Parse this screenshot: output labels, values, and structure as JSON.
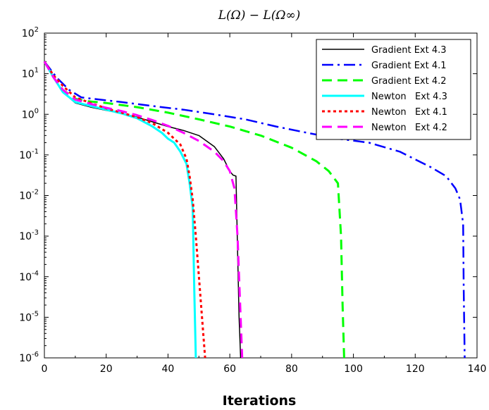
{
  "chart_data": {
    "type": "line",
    "title": "L(Ω) − L(Ω∞)",
    "xlabel": "Iterations",
    "ylabel": "",
    "xlim": [
      0,
      140
    ],
    "ylim": [
      1e-06,
      100
    ],
    "yscale": "log",
    "grid": false,
    "legend_position": "top-right",
    "x_ticks": [
      "0",
      "20",
      "40",
      "60",
      "80",
      "100",
      "120",
      "140"
    ],
    "y_ticks": [
      {
        "base": "10",
        "exp": "2",
        "value": 100
      },
      {
        "base": "10",
        "exp": "1",
        "value": 10
      },
      {
        "base": "10",
        "exp": "0",
        "value": 1
      },
      {
        "base": "10",
        "exp": "-1",
        "value": 0.1
      },
      {
        "base": "10",
        "exp": "-2",
        "value": 0.01
      },
      {
        "base": "10",
        "exp": "-3",
        "value": 0.001
      },
      {
        "base": "10",
        "exp": "-4",
        "value": 0.0001
      },
      {
        "base": "10",
        "exp": "-5",
        "value": 1e-05
      },
      {
        "base": "10",
        "exp": "-6",
        "value": 1e-06
      }
    ],
    "series": [
      {
        "name": "Gradient Ext 4.3",
        "color": "#000000",
        "style": "solid",
        "x": [
          0,
          3,
          6,
          10,
          15,
          20,
          25,
          30,
          35,
          40,
          45,
          50,
          55,
          58,
          60,
          61,
          62,
          62.5,
          63,
          63.5
        ],
        "y": [
          20,
          8,
          3.5,
          1.9,
          1.5,
          1.25,
          1.05,
          0.85,
          0.65,
          0.5,
          0.4,
          0.3,
          0.16,
          0.08,
          0.04,
          0.032,
          0.03,
          0.0005,
          1e-05,
          1e-06
        ]
      },
      {
        "name": "Gradient Ext 4.1",
        "color": "#0000ff",
        "style": "dashdot",
        "x": [
          0,
          4,
          8,
          12,
          18,
          25,
          35,
          45,
          55,
          65,
          75,
          85,
          95,
          105,
          115,
          125,
          130,
          133,
          134.5,
          135.5,
          135.7,
          136
        ],
        "y": [
          20,
          8,
          4,
          2.6,
          2.3,
          2.0,
          1.6,
          1.3,
          1.0,
          0.75,
          0.5,
          0.35,
          0.25,
          0.2,
          0.12,
          0.05,
          0.03,
          0.015,
          0.008,
          0.002,
          5e-05,
          1e-06
        ]
      },
      {
        "name": "Gradient Ext 4.2",
        "color": "#00ff00",
        "style": "dash",
        "x": [
          0,
          3,
          6,
          10,
          14,
          20,
          30,
          40,
          50,
          60,
          70,
          80,
          88,
          92,
          95,
          96,
          96.5,
          97
        ],
        "y": [
          20,
          8,
          4,
          2.4,
          2.1,
          1.9,
          1.5,
          1.1,
          0.75,
          0.5,
          0.3,
          0.15,
          0.07,
          0.04,
          0.02,
          0.001,
          2e-05,
          1e-06
        ]
      },
      {
        "name": "Newton   Ext 4.3",
        "color": "#00ffff",
        "style": "solid",
        "x": [
          0,
          3,
          6,
          10,
          15,
          20,
          25,
          30,
          35,
          38,
          40,
          42,
          44,
          46,
          47,
          48,
          48.5,
          49
        ],
        "y": [
          20,
          8,
          3.5,
          2.0,
          1.6,
          1.3,
          1.05,
          0.8,
          0.5,
          0.35,
          0.25,
          0.2,
          0.12,
          0.06,
          0.02,
          0.005,
          5e-05,
          1e-06
        ]
      },
      {
        "name": "Newton   Ext 4.1",
        "color": "#ff0000",
        "style": "dot",
        "x": [
          0,
          3,
          6,
          10,
          15,
          20,
          25,
          30,
          35,
          40,
          44,
          46,
          47,
          48,
          49,
          50,
          51,
          52
        ],
        "y": [
          20,
          9,
          5,
          2.6,
          1.9,
          1.4,
          1.1,
          0.85,
          0.6,
          0.35,
          0.18,
          0.08,
          0.03,
          0.008,
          0.001,
          0.0001,
          1e-05,
          1e-06
        ]
      },
      {
        "name": "Newton   Ext 4.2",
        "color": "#ff00ff",
        "style": "dash",
        "x": [
          0,
          3,
          6,
          10,
          15,
          20,
          25,
          30,
          35,
          40,
          45,
          50,
          55,
          58,
          60,
          61.5,
          62.5,
          63,
          63.5,
          64
        ],
        "y": [
          20,
          8,
          4,
          2.3,
          1.8,
          1.45,
          1.2,
          0.95,
          0.72,
          0.52,
          0.35,
          0.22,
          0.12,
          0.07,
          0.04,
          0.015,
          0.001,
          0.0001,
          1e-05,
          1e-06
        ]
      }
    ]
  }
}
